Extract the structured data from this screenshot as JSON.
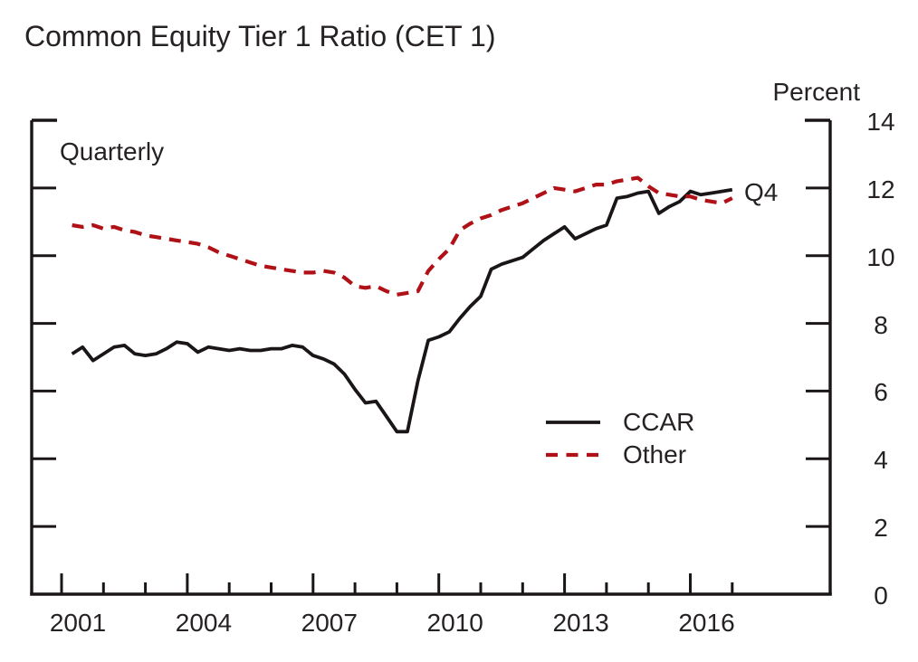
{
  "colors": {
    "ccar_line": "#1a1516",
    "other_line": "#b01117",
    "axis": "#1a1516",
    "text": "#262223"
  },
  "chart_data": {
    "type": "line",
    "title": "Common Equity Tier 1 Ratio (CET 1)",
    "ylabel": "Percent",
    "frequency_label": "Quarterly",
    "last_point_label": "Q4",
    "start_quarter": "2001:Q1",
    "end_quarter": "2016:Q4",
    "ylim": [
      0,
      14
    ],
    "yticks": [
      0,
      2,
      4,
      6,
      8,
      10,
      12,
      14
    ],
    "x_tick_years_all": [
      2001,
      2002,
      2003,
      2004,
      2005,
      2006,
      2007,
      2008,
      2009,
      2010,
      2011,
      2012,
      2013,
      2014,
      2015,
      2016,
      2017
    ],
    "x_tick_years_major": [
      2001,
      2004,
      2007,
      2010,
      2013,
      2016
    ],
    "grid": false,
    "legend_position": "center-right",
    "series": [
      {
        "name": "CCAR",
        "style": "solid",
        "color": "#1a1516",
        "values": [
          7.1,
          7.3,
          6.9,
          7.1,
          7.3,
          7.35,
          7.1,
          7.05,
          7.1,
          7.25,
          7.45,
          7.4,
          7.15,
          7.3,
          7.25,
          7.2,
          7.25,
          7.2,
          7.2,
          7.25,
          7.25,
          7.35,
          7.3,
          7.05,
          6.95,
          6.8,
          6.5,
          6.05,
          5.65,
          5.7,
          5.25,
          4.8,
          4.8,
          6.3,
          7.5,
          7.6,
          7.75,
          8.15,
          8.5,
          8.8,
          9.6,
          9.75,
          9.85,
          9.95,
          10.2,
          10.45,
          10.65,
          10.85,
          10.5,
          10.65,
          10.8,
          10.9,
          11.7,
          11.75,
          11.85,
          11.9,
          11.25,
          11.45,
          11.6,
          11.9,
          11.8,
          11.85,
          11.9,
          11.95
        ]
      },
      {
        "name": "Other",
        "style": "dashed",
        "color": "#b01117",
        "values": [
          10.9,
          10.85,
          10.9,
          10.8,
          10.85,
          10.75,
          10.7,
          10.6,
          10.55,
          10.5,
          10.45,
          10.4,
          10.35,
          10.25,
          10.1,
          10.0,
          9.9,
          9.8,
          9.7,
          9.65,
          9.6,
          9.55,
          9.5,
          9.5,
          9.55,
          9.5,
          9.35,
          9.1,
          9.05,
          9.1,
          8.95,
          8.85,
          8.9,
          8.95,
          9.55,
          9.9,
          10.2,
          10.75,
          10.95,
          11.1,
          11.2,
          11.35,
          11.45,
          11.55,
          11.7,
          11.85,
          12.0,
          11.95,
          11.9,
          12.0,
          12.1,
          12.1,
          12.2,
          12.25,
          12.3,
          12.05,
          11.85,
          11.8,
          11.75,
          11.75,
          11.65,
          11.6,
          11.55,
          11.7
        ]
      }
    ]
  }
}
